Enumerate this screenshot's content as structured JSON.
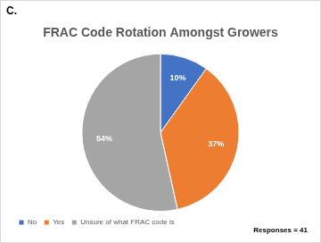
{
  "chart_data": {
    "type": "pie",
    "title": "FRAC Code Rotation Amongst Growers",
    "annotations": [
      "C.",
      "Responses = 41"
    ],
    "categories": [
      "No",
      "Yes",
      "Unsure of what FRAC code is"
    ],
    "values": [
      10,
      37,
      54
    ],
    "value_labels": [
      "10%",
      "37%",
      "54%"
    ],
    "colors": [
      "#4472c4",
      "#ed7d31",
      "#a5a5a5"
    ],
    "data_labels": true,
    "legend": "bottom"
  }
}
